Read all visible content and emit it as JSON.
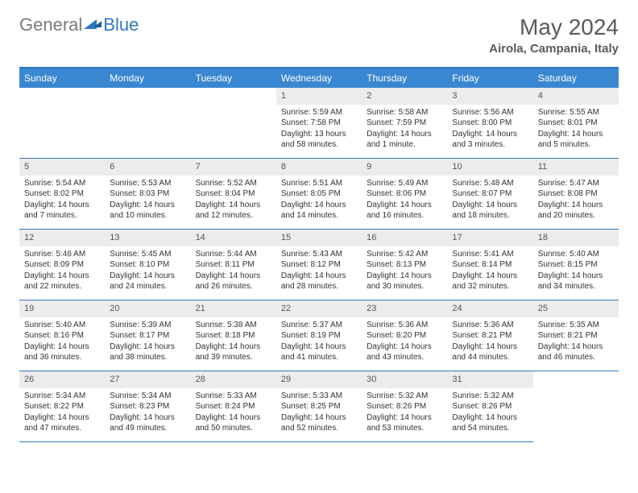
{
  "logo": {
    "gray": "General",
    "blue": "Blue"
  },
  "title": "May 2024",
  "location": "Airola, Campania, Italy",
  "colors": {
    "header_bg": "#3a87d1",
    "border": "#2f78c2",
    "daynum_bg": "#ececec",
    "text": "#333333",
    "title_text": "#5a5a5a"
  },
  "weekdays": [
    "Sunday",
    "Monday",
    "Tuesday",
    "Wednesday",
    "Thursday",
    "Friday",
    "Saturday"
  ],
  "leading_blanks": 3,
  "days": [
    {
      "n": "1",
      "sr": "5:59 AM",
      "ss": "7:58 PM",
      "dl": "13 hours and 58 minutes."
    },
    {
      "n": "2",
      "sr": "5:58 AM",
      "ss": "7:59 PM",
      "dl": "14 hours and 1 minute."
    },
    {
      "n": "3",
      "sr": "5:56 AM",
      "ss": "8:00 PM",
      "dl": "14 hours and 3 minutes."
    },
    {
      "n": "4",
      "sr": "5:55 AM",
      "ss": "8:01 PM",
      "dl": "14 hours and 5 minutes."
    },
    {
      "n": "5",
      "sr": "5:54 AM",
      "ss": "8:02 PM",
      "dl": "14 hours and 7 minutes."
    },
    {
      "n": "6",
      "sr": "5:53 AM",
      "ss": "8:03 PM",
      "dl": "14 hours and 10 minutes."
    },
    {
      "n": "7",
      "sr": "5:52 AM",
      "ss": "8:04 PM",
      "dl": "14 hours and 12 minutes."
    },
    {
      "n": "8",
      "sr": "5:51 AM",
      "ss": "8:05 PM",
      "dl": "14 hours and 14 minutes."
    },
    {
      "n": "9",
      "sr": "5:49 AM",
      "ss": "8:06 PM",
      "dl": "14 hours and 16 minutes."
    },
    {
      "n": "10",
      "sr": "5:48 AM",
      "ss": "8:07 PM",
      "dl": "14 hours and 18 minutes."
    },
    {
      "n": "11",
      "sr": "5:47 AM",
      "ss": "8:08 PM",
      "dl": "14 hours and 20 minutes."
    },
    {
      "n": "12",
      "sr": "5:46 AM",
      "ss": "8:09 PM",
      "dl": "14 hours and 22 minutes."
    },
    {
      "n": "13",
      "sr": "5:45 AM",
      "ss": "8:10 PM",
      "dl": "14 hours and 24 minutes."
    },
    {
      "n": "14",
      "sr": "5:44 AM",
      "ss": "8:11 PM",
      "dl": "14 hours and 26 minutes."
    },
    {
      "n": "15",
      "sr": "5:43 AM",
      "ss": "8:12 PM",
      "dl": "14 hours and 28 minutes."
    },
    {
      "n": "16",
      "sr": "5:42 AM",
      "ss": "8:13 PM",
      "dl": "14 hours and 30 minutes."
    },
    {
      "n": "17",
      "sr": "5:41 AM",
      "ss": "8:14 PM",
      "dl": "14 hours and 32 minutes."
    },
    {
      "n": "18",
      "sr": "5:40 AM",
      "ss": "8:15 PM",
      "dl": "14 hours and 34 minutes."
    },
    {
      "n": "19",
      "sr": "5:40 AM",
      "ss": "8:16 PM",
      "dl": "14 hours and 36 minutes."
    },
    {
      "n": "20",
      "sr": "5:39 AM",
      "ss": "8:17 PM",
      "dl": "14 hours and 38 minutes."
    },
    {
      "n": "21",
      "sr": "5:38 AM",
      "ss": "8:18 PM",
      "dl": "14 hours and 39 minutes."
    },
    {
      "n": "22",
      "sr": "5:37 AM",
      "ss": "8:19 PM",
      "dl": "14 hours and 41 minutes."
    },
    {
      "n": "23",
      "sr": "5:36 AM",
      "ss": "8:20 PM",
      "dl": "14 hours and 43 minutes."
    },
    {
      "n": "24",
      "sr": "5:36 AM",
      "ss": "8:21 PM",
      "dl": "14 hours and 44 minutes."
    },
    {
      "n": "25",
      "sr": "5:35 AM",
      "ss": "8:21 PM",
      "dl": "14 hours and 46 minutes."
    },
    {
      "n": "26",
      "sr": "5:34 AM",
      "ss": "8:22 PM",
      "dl": "14 hours and 47 minutes."
    },
    {
      "n": "27",
      "sr": "5:34 AM",
      "ss": "8:23 PM",
      "dl": "14 hours and 49 minutes."
    },
    {
      "n": "28",
      "sr": "5:33 AM",
      "ss": "8:24 PM",
      "dl": "14 hours and 50 minutes."
    },
    {
      "n": "29",
      "sr": "5:33 AM",
      "ss": "8:25 PM",
      "dl": "14 hours and 52 minutes."
    },
    {
      "n": "30",
      "sr": "5:32 AM",
      "ss": "8:26 PM",
      "dl": "14 hours and 53 minutes."
    },
    {
      "n": "31",
      "sr": "5:32 AM",
      "ss": "8:26 PM",
      "dl": "14 hours and 54 minutes."
    }
  ],
  "labels": {
    "sunrise": "Sunrise: ",
    "sunset": "Sunset: ",
    "daylight": "Daylight: "
  }
}
